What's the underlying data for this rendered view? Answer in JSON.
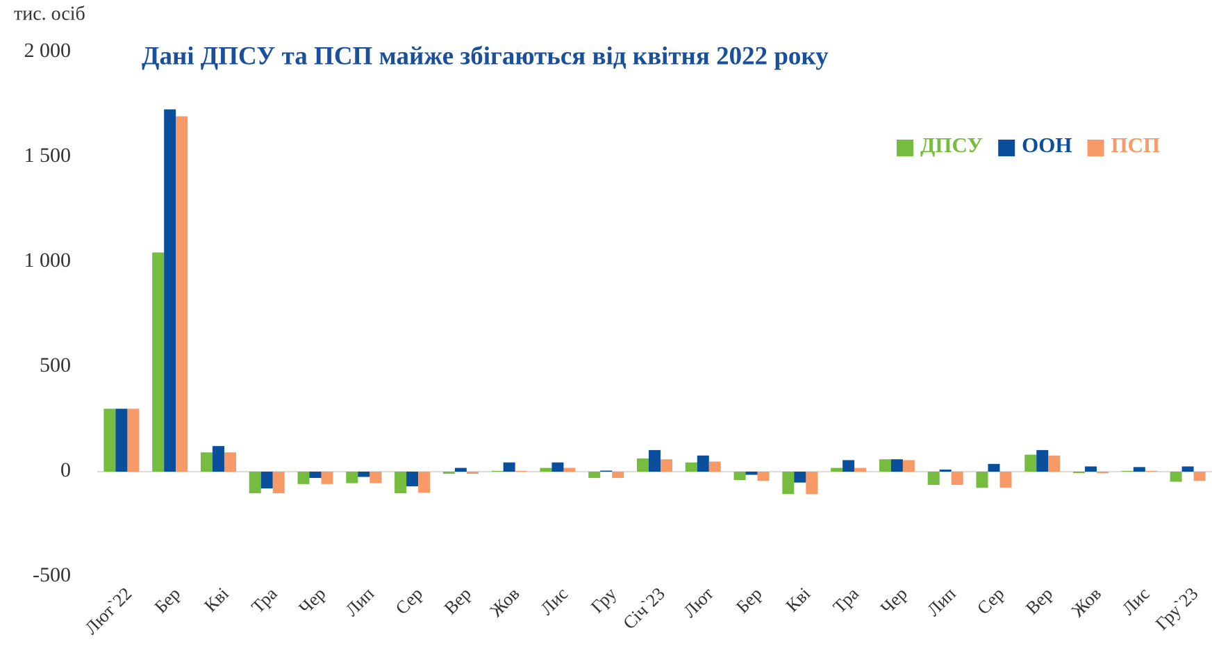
{
  "chart_data": {
    "type": "bar",
    "title": "Дані ДПСУ та ПСП майже збігаються від квітня 2022 року",
    "ylabel": "тис. осіб",
    "categories": [
      "Лют`22",
      "Бер",
      "Кві",
      "Тра",
      "Чер",
      "Лип",
      "Сер",
      "Вер",
      "Жов",
      "Лис",
      "Гру",
      "Січ`23",
      "Лют",
      "Бер",
      "Кві",
      "Тра",
      "Чер",
      "Лип",
      "Сер",
      "Вер",
      "Жов",
      "Лис",
      "Гру`23"
    ],
    "series": [
      {
        "name": "ДПСУ",
        "color": "#76bc3e",
        "values": [
          300,
          1045,
          92,
          -103,
          -59,
          -55,
          -103,
          -10,
          4,
          18,
          -30,
          63,
          44,
          -40,
          -107,
          18,
          59,
          -63,
          -77,
          81,
          -7,
          4,
          -48
        ]
      },
      {
        "name": "ООН",
        "color": "#0a4f9c",
        "values": [
          300,
          1727,
          122,
          -80,
          -30,
          -25,
          -70,
          18,
          44,
          44,
          5,
          103,
          77,
          -15,
          -52,
          55,
          59,
          10,
          37,
          103,
          25,
          22,
          25
        ]
      },
      {
        "name": "ПСП",
        "color": "#f79a68",
        "values": [
          300,
          1694,
          92,
          -103,
          -59,
          -55,
          -100,
          -10,
          4,
          18,
          -30,
          59,
          48,
          -44,
          -107,
          18,
          55,
          -63,
          -77,
          77,
          -7,
          4,
          -44
        ]
      }
    ],
    "ylim": [
      -500,
      2000
    ],
    "yticks": [
      -500,
      0,
      500,
      {
        "value": 1000,
        "label": "1 000"
      },
      {
        "value": 1500,
        "label": "1 500"
      },
      {
        "value": 2000,
        "label": "2 000"
      }
    ],
    "legend": "upper right"
  }
}
